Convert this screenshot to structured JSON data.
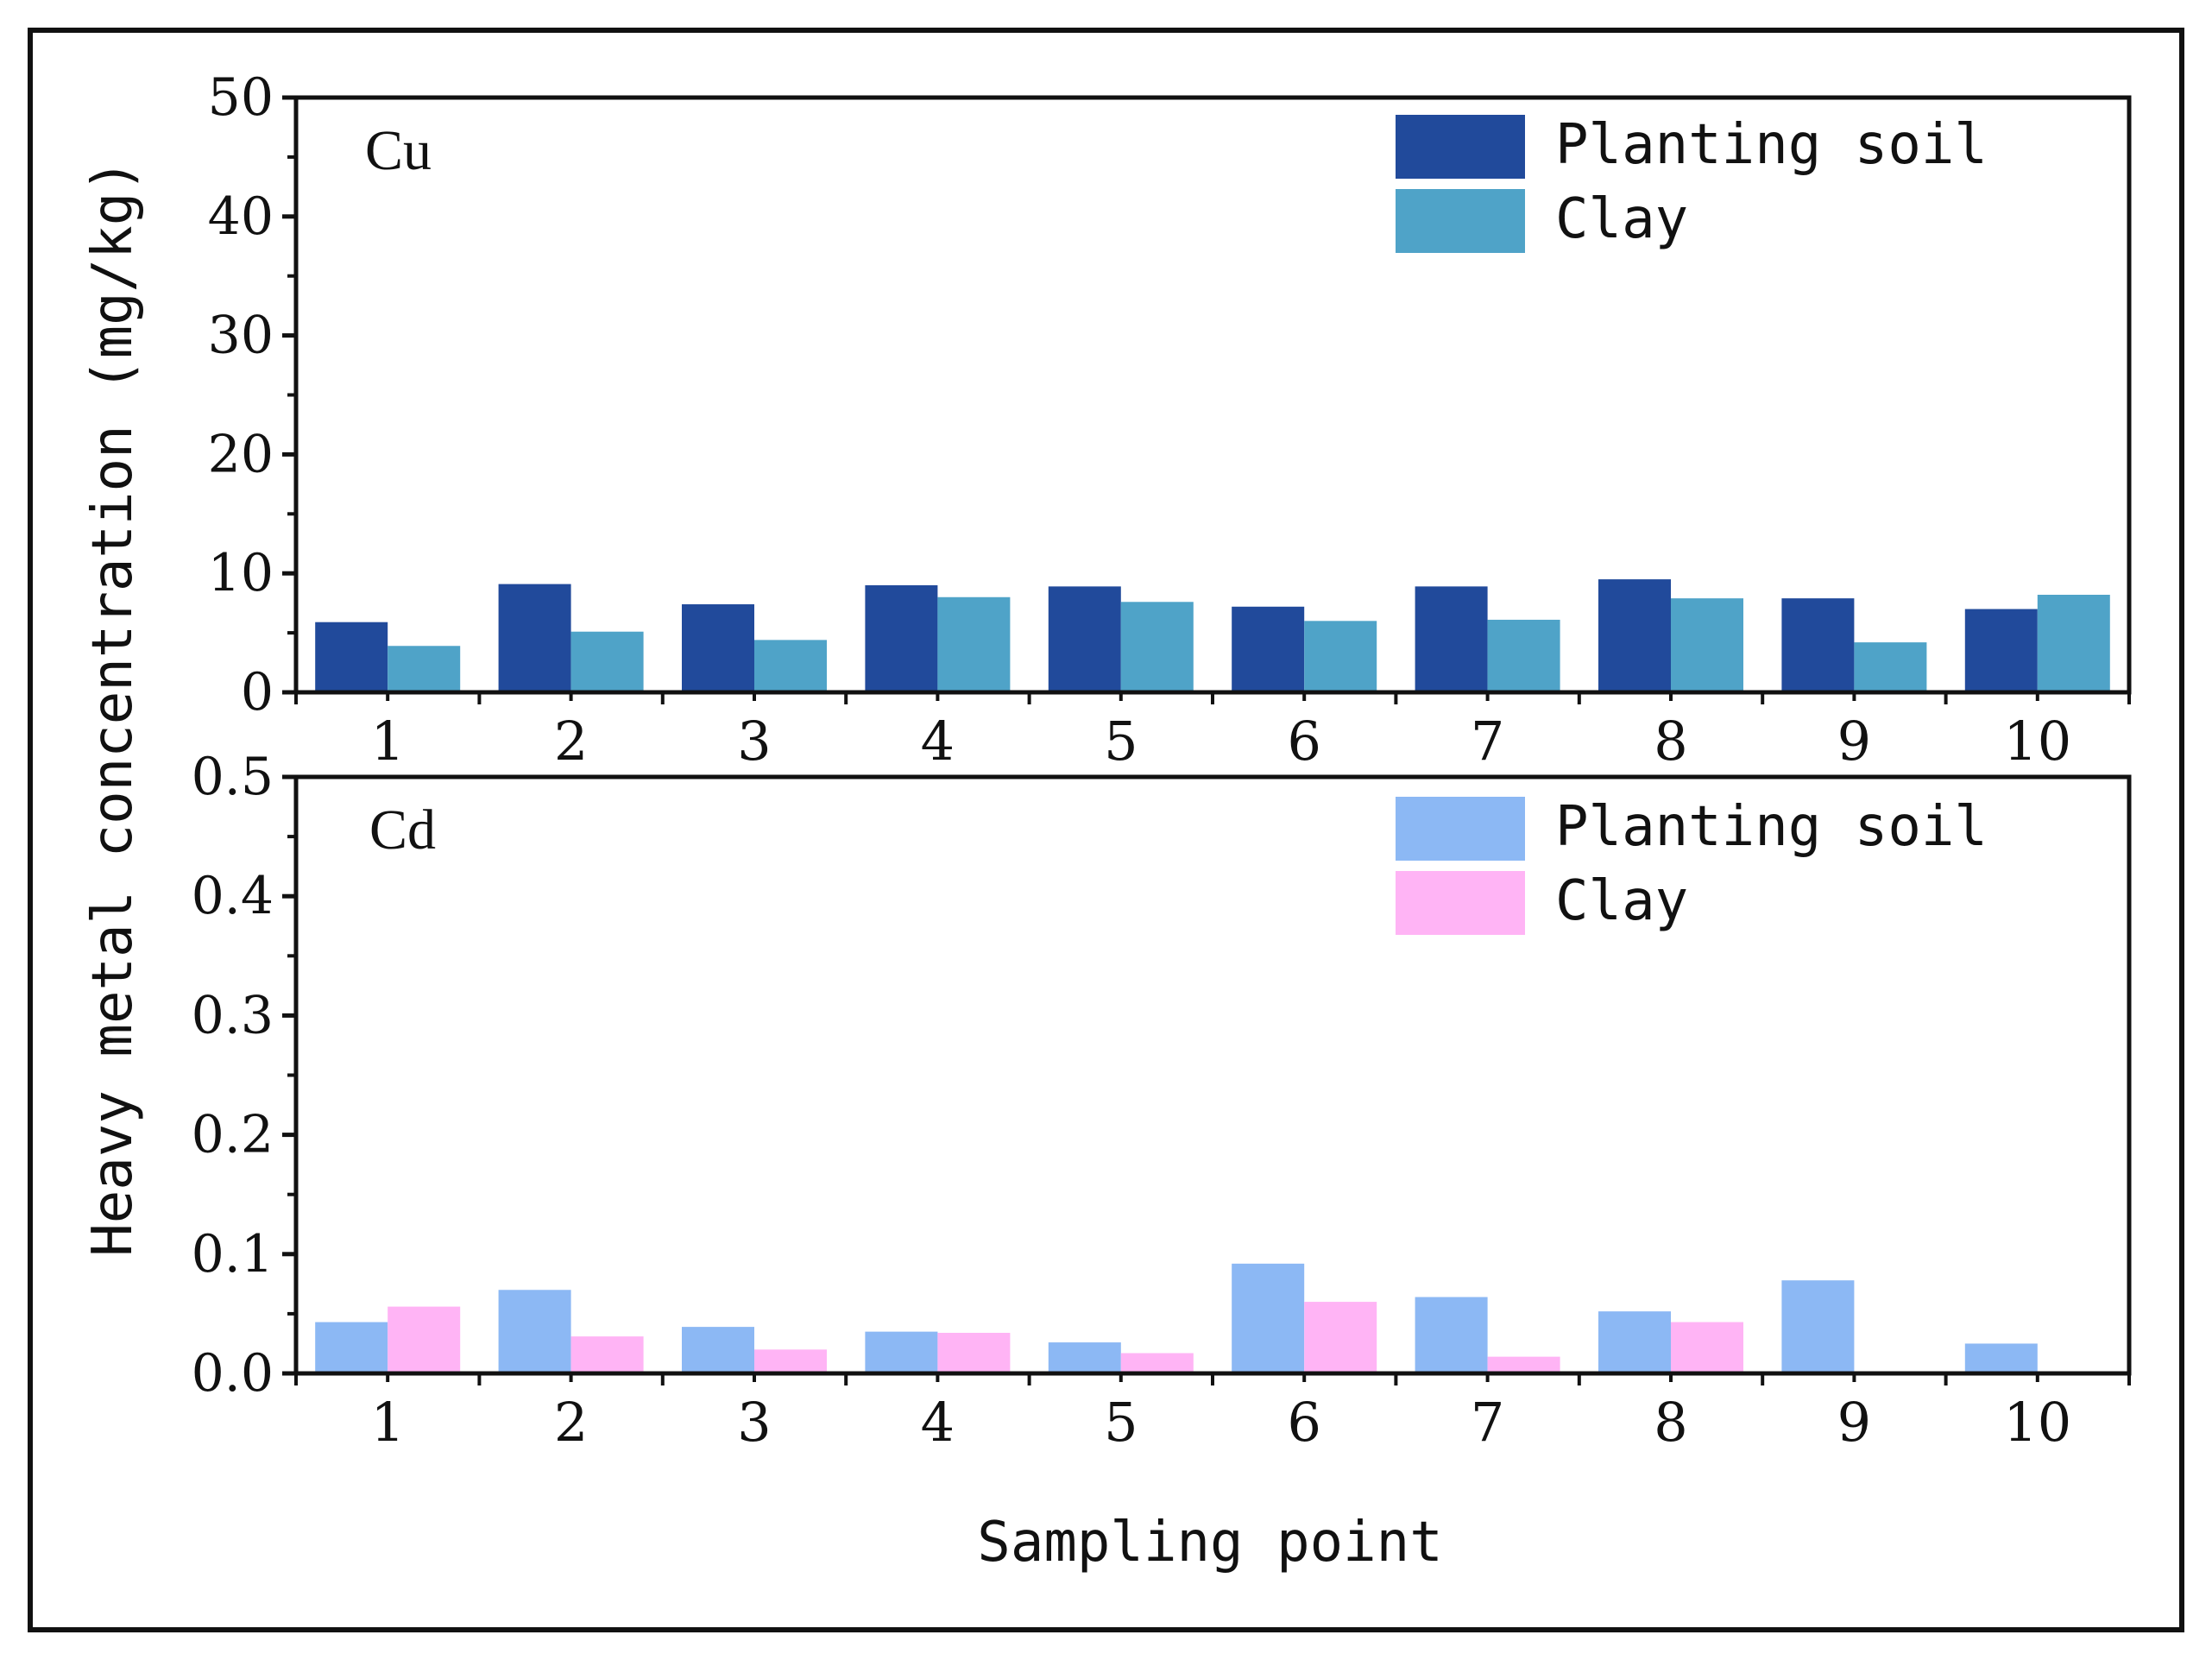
{
  "figure": {
    "ylabel": "Heavy metal concentration (mg/kg)",
    "xlabel": "Sampling point"
  },
  "chart_data": [
    {
      "type": "bar",
      "panel_label": "Cu",
      "categories": [
        "1",
        "2",
        "3",
        "4",
        "5",
        "6",
        "7",
        "8",
        "9",
        "10"
      ],
      "series": [
        {
          "name": "Planting soil",
          "color": "#214A9B",
          "values": [
            5.9,
            9.1,
            7.4,
            9.0,
            8.9,
            7.2,
            8.9,
            9.5,
            7.9,
            7.0
          ]
        },
        {
          "name": "Clay",
          "color": "#4FA3C8",
          "values": [
            3.9,
            5.1,
            4.4,
            8.0,
            7.6,
            6.0,
            6.1,
            7.9,
            4.2,
            8.2
          ]
        }
      ],
      "ylim": [
        0,
        50
      ],
      "yticks": [
        0,
        10,
        20,
        30,
        40,
        50
      ],
      "ytick_labels": [
        "0",
        "10",
        "20",
        "30",
        "40",
        "50"
      ],
      "legend_position": "top-right"
    },
    {
      "type": "bar",
      "panel_label": "Cd",
      "categories": [
        "1",
        "2",
        "3",
        "4",
        "5",
        "6",
        "7",
        "8",
        "9",
        "10"
      ],
      "series": [
        {
          "name": "Planting soil",
          "color": "#8CB8F4",
          "values": [
            0.043,
            0.07,
            0.039,
            0.035,
            0.026,
            0.092,
            0.064,
            0.052,
            0.078,
            0.025
          ]
        },
        {
          "name": "Clay",
          "color": "#FFB4F5",
          "values": [
            0.056,
            0.031,
            0.02,
            0.034,
            0.017,
            0.06,
            0.014,
            0.043,
            0.0,
            0.0
          ]
        }
      ],
      "ylim": [
        0,
        0.5
      ],
      "yticks": [
        0,
        0.1,
        0.2,
        0.3,
        0.4,
        0.5
      ],
      "ytick_labels": [
        "0.0",
        "0.1",
        "0.2",
        "0.3",
        "0.4",
        "0.5"
      ],
      "legend_position": "top-right"
    }
  ]
}
